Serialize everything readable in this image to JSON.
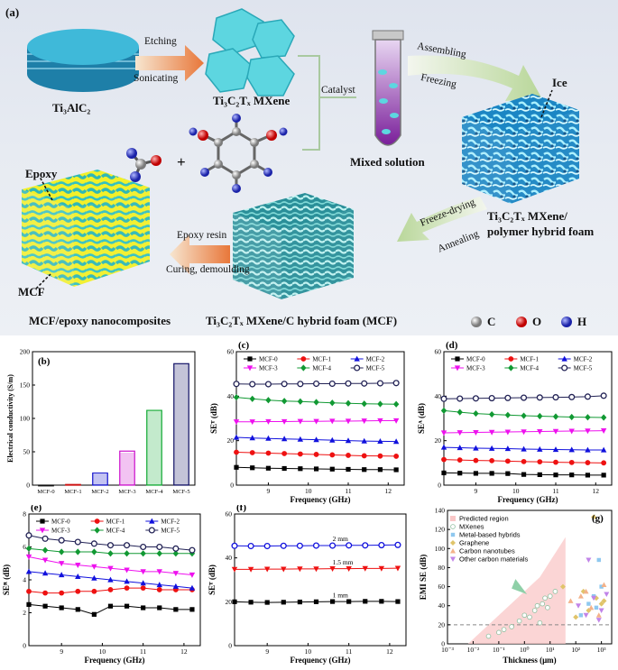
{
  "schematic": {
    "panel_label": "(a)",
    "ti3alc2": "Ti₃AlC₂",
    "etching": "Etching",
    "sonicating": "Sonicating",
    "mxene": "Ti₃C₂Tₓ MXene",
    "catalyst": "Catalyst",
    "assembling": "Assembling",
    "freezing": "Freezing",
    "mixed_solution": "Mixed solution",
    "ice": "Ice",
    "plus": "+",
    "hybrid_line1": "Ti₃C₂Tₓ MXene/",
    "hybrid_line2": "polymer hybrid foam",
    "freeze_drying": "Freeze-drying",
    "annealing": "Annealing",
    "epoxy": "Epoxy",
    "epoxy_resin": "Epoxy resin",
    "curing": "Curing, demoulding",
    "mcf": "MCF",
    "nanocomposites": "MCF/epoxy nanocomposites",
    "carbon_foam": "Ti₃C₂Tₓ MXene/C hybrid foam (MCF)",
    "legend": [
      {
        "symbol": "C",
        "color": "#9a9a9a"
      },
      {
        "symbol": "O",
        "color": "#e01010"
      },
      {
        "symbol": "H",
        "color": "#2233cc"
      }
    ]
  },
  "chart_data": [
    {
      "panel": "(b)",
      "type": "bar",
      "ylabel": "Electrical conductivity  (S/m)",
      "categories": [
        "MCF-0",
        "MCF-1",
        "MCF-2",
        "MCF-3",
        "MCF-4",
        "MCF-5"
      ],
      "values": [
        0,
        1,
        18,
        51,
        112,
        182
      ],
      "colors": [
        "#111111",
        "#cc1111",
        "#1111cc",
        "#cc11cc",
        "#11aa33",
        "#111166"
      ],
      "ylim": [
        0,
        200
      ],
      "yticks": [
        0,
        50,
        100,
        150,
        200
      ]
    },
    {
      "panel": "(c)",
      "type": "line",
      "xlabel": "Frequency (GHz)",
      "ylabel": "SEᵀ (dB)",
      "xlim": [
        8.2,
        12.4
      ],
      "ylim": [
        0,
        60
      ],
      "xticks": [
        9,
        10,
        11,
        12
      ],
      "yticks": [
        0,
        20,
        40,
        60
      ],
      "legend": [
        "MCF-0",
        "MCF-1",
        "MCF-2",
        "MCF-3",
        "MCF-4",
        "MCF-5"
      ],
      "x": [
        8.2,
        8.6,
        9.0,
        9.4,
        9.8,
        10.2,
        10.6,
        11.0,
        11.4,
        11.8,
        12.2
      ],
      "series": [
        {
          "name": "MCF-0",
          "color": "#000000",
          "marker": "s",
          "values": [
            8,
            7.8,
            7.6,
            7.5,
            7.4,
            7.3,
            7.2,
            7.1,
            7.0,
            7.0,
            6.9
          ]
        },
        {
          "name": "MCF-1",
          "color": "#ee1111",
          "marker": "o",
          "values": [
            14.8,
            14.6,
            14.4,
            14.2,
            14.0,
            13.8,
            13.6,
            13.4,
            13.2,
            13.1,
            13.0
          ]
        },
        {
          "name": "MCF-2",
          "color": "#1111dd",
          "marker": "^",
          "values": [
            21.5,
            21.2,
            21.0,
            20.8,
            20.6,
            20.4,
            20.2,
            20.0,
            19.8,
            19.7,
            19.6
          ]
        },
        {
          "name": "MCF-3",
          "color": "#ee11ee",
          "marker": "v",
          "values": [
            28.5,
            28.5,
            28.6,
            28.6,
            28.7,
            28.7,
            28.8,
            28.8,
            28.9,
            29.0,
            29.0
          ]
        },
        {
          "name": "MCF-4",
          "color": "#119933",
          "marker": "d",
          "values": [
            39.5,
            38.8,
            38.2,
            37.8,
            37.6,
            37.3,
            37.0,
            36.8,
            36.6,
            36.5,
            36.4
          ]
        },
        {
          "name": "MCF-5",
          "color": "#222255",
          "marker": "O",
          "values": [
            45.5,
            45.4,
            45.4,
            45.5,
            45.5,
            45.6,
            45.6,
            45.7,
            45.7,
            45.8,
            45.9
          ]
        }
      ]
    },
    {
      "panel": "(d)",
      "type": "line",
      "xlabel": "Frequency (GHz)",
      "ylabel": "SEᴬ (dB)",
      "xlim": [
        8.2,
        12.4
      ],
      "ylim": [
        0,
        60
      ],
      "xticks": [
        9,
        10,
        11,
        12
      ],
      "yticks": [
        0,
        20,
        40,
        60
      ],
      "legend": [
        "MCF-0",
        "MCF-1",
        "MCF-2",
        "MCF-3",
        "MCF-4",
        "MCF-5"
      ],
      "x": [
        8.2,
        8.6,
        9.0,
        9.4,
        9.8,
        10.2,
        10.6,
        11.0,
        11.4,
        11.8,
        12.2
      ],
      "series": [
        {
          "name": "MCF-0",
          "color": "#000000",
          "marker": "s",
          "values": [
            5.5,
            5.4,
            5.3,
            5.3,
            5.2,
            4.8,
            4.7,
            4.6,
            4.6,
            4.5,
            4.5
          ]
        },
        {
          "name": "MCF-1",
          "color": "#ee1111",
          "marker": "o",
          "values": [
            11.5,
            11.3,
            11.1,
            11.0,
            10.8,
            10.6,
            10.5,
            10.3,
            10.2,
            10.1,
            10.0
          ]
        },
        {
          "name": "MCF-2",
          "color": "#1111dd",
          "marker": "^",
          "values": [
            17.0,
            16.8,
            16.6,
            16.5,
            16.4,
            16.2,
            16.1,
            16.0,
            15.9,
            15.8,
            15.8
          ]
        },
        {
          "name": "MCF-3",
          "color": "#ee11ee",
          "marker": "v",
          "values": [
            23.5,
            23.6,
            23.7,
            23.8,
            23.9,
            24.0,
            24.1,
            24.2,
            24.3,
            24.4,
            24.5
          ]
        },
        {
          "name": "MCF-4",
          "color": "#119933",
          "marker": "d",
          "values": [
            33.5,
            32.8,
            32.2,
            31.8,
            31.5,
            31.2,
            31.0,
            30.8,
            30.6,
            30.5,
            30.4
          ]
        },
        {
          "name": "MCF-5",
          "color": "#222255",
          "marker": "O",
          "values": [
            38.8,
            38.9,
            39.0,
            39.1,
            39.2,
            39.3,
            39.4,
            39.5,
            39.6,
            39.8,
            40.2
          ]
        }
      ]
    },
    {
      "panel": "(e)",
      "type": "line",
      "xlabel": "Frequency (GHz)",
      "ylabel": "SEᴿ (dB)",
      "xlim": [
        8.2,
        12.4
      ],
      "ylim": [
        0,
        8
      ],
      "xticks": [
        9,
        10,
        11,
        12
      ],
      "yticks": [
        0,
        2,
        4,
        6,
        8
      ],
      "legend": [
        "MCF-0",
        "MCF-1",
        "MCF-2",
        "MCF-3",
        "MCF-4",
        "MCF-5"
      ],
      "x": [
        8.2,
        8.6,
        9.0,
        9.4,
        9.8,
        10.2,
        10.6,
        11.0,
        11.4,
        11.8,
        12.2
      ],
      "series": [
        {
          "name": "MCF-0",
          "color": "#000000",
          "marker": "s",
          "values": [
            2.5,
            2.4,
            2.3,
            2.2,
            1.9,
            2.4,
            2.4,
            2.3,
            2.3,
            2.2,
            2.2
          ]
        },
        {
          "name": "MCF-1",
          "color": "#ee1111",
          "marker": "o",
          "values": [
            3.3,
            3.2,
            3.2,
            3.3,
            3.3,
            3.4,
            3.5,
            3.5,
            3.4,
            3.4,
            3.4
          ]
        },
        {
          "name": "MCF-2",
          "color": "#1111dd",
          "marker": "^",
          "values": [
            4.5,
            4.4,
            4.3,
            4.2,
            4.1,
            4.0,
            3.9,
            3.8,
            3.7,
            3.6,
            3.5
          ]
        },
        {
          "name": "MCF-3",
          "color": "#ee11ee",
          "marker": "v",
          "values": [
            5.4,
            5.2,
            5.0,
            4.9,
            4.8,
            4.7,
            4.6,
            4.5,
            4.5,
            4.4,
            4.3
          ]
        },
        {
          "name": "MCF-4",
          "color": "#119933",
          "marker": "d",
          "values": [
            5.9,
            5.8,
            5.7,
            5.7,
            5.7,
            5.6,
            5.6,
            5.6,
            5.6,
            5.6,
            5.6
          ]
        },
        {
          "name": "MCF-5",
          "color": "#222255",
          "marker": "O",
          "values": [
            6.7,
            6.5,
            6.4,
            6.3,
            6.2,
            6.1,
            6.1,
            6.0,
            6.0,
            5.9,
            5.8
          ]
        }
      ]
    },
    {
      "panel": "(f)",
      "type": "line",
      "xlabel": "Frequency (GHz)",
      "ylabel": "SEᵀ (dB)",
      "xlim": [
        8.2,
        12.4
      ],
      "ylim": [
        0,
        60
      ],
      "xticks": [
        9,
        10,
        11,
        12
      ],
      "yticks": [
        0,
        20,
        40,
        60
      ],
      "x": [
        8.2,
        8.6,
        9.0,
        9.4,
        9.8,
        10.2,
        10.6,
        11.0,
        11.4,
        11.8,
        12.2
      ],
      "annotations": [
        "2 mm",
        "1.5 mm",
        "1 mm"
      ],
      "series": [
        {
          "name": "2 mm",
          "color": "#1111dd",
          "marker": "O",
          "values": [
            45.5,
            45.4,
            45.4,
            45.5,
            45.5,
            45.6,
            45.6,
            45.7,
            45.7,
            45.8,
            45.9
          ]
        },
        {
          "name": "1.5 mm",
          "color": "#ee1111",
          "marker": "v",
          "values": [
            34.8,
            34.8,
            34.9,
            34.9,
            35.0,
            35.0,
            35.1,
            35.1,
            35.2,
            35.2,
            35.3
          ]
        },
        {
          "name": "1 mm",
          "color": "#000000",
          "marker": "s",
          "values": [
            20.0,
            19.8,
            19.7,
            19.8,
            19.9,
            20.0,
            20.1,
            20.1,
            20.2,
            20.2,
            20.1
          ]
        }
      ]
    },
    {
      "panel": "(g)",
      "type": "scatter",
      "xlabel": "Thickness (μm)",
      "ylabel": "EMI SE (dB)",
      "xlim_log10": [
        -3,
        3.4
      ],
      "ylim": [
        0,
        140
      ],
      "xticks": [
        "10⁻³",
        "10⁻²",
        "10⁻¹",
        "10⁰",
        "10¹",
        "10²",
        "10³"
      ],
      "yticks": [
        0,
        20,
        40,
        60,
        80,
        100,
        120,
        140
      ],
      "legend": [
        "Predicted region",
        "MXenes",
        "Metal-based hybrids",
        "Graphene",
        "Carbon nanotubes",
        "Other carbon materials"
      ],
      "colors": {
        "predicted": "#f9c7c7",
        "mxenes": "#ffffff",
        "metal": "#8fc8ef",
        "graphene": "#e0c46a",
        "cnt": "#f3b28a",
        "other": "#c184e8",
        "threshold": "#888888",
        "arrow": "#8fd0a8"
      },
      "threshold_db": 20,
      "points": [
        {
          "cls": "mxenes",
          "x": [
            -1.4,
            -1.0,
            -0.8,
            -0.5,
            -0.2,
            0.0,
            0.2,
            0.4,
            0.5,
            0.7,
            0.8,
            1.0,
            1.2,
            0.9,
            0.6
          ],
          "y": [
            8,
            12,
            15,
            18,
            24,
            30,
            28,
            35,
            40,
            42,
            48,
            50,
            55,
            38,
            22
          ]
        },
        {
          "cls": "metal",
          "x": [
            2.2,
            2.5,
            2.7,
            2.8,
            3.0,
            2.9
          ],
          "y": [
            30,
            42,
            50,
            38,
            60,
            88
          ]
        },
        {
          "cls": "graphene",
          "x": [
            1.5,
            2.0,
            2.5,
            2.7,
            3.0,
            2.8,
            3.1,
            2.3
          ],
          "y": [
            60,
            28,
            35,
            133,
            42,
            48,
            45,
            55
          ]
        },
        {
          "cls": "cnt",
          "x": [
            1.8,
            2.2,
            2.6,
            2.9,
            3.1,
            2.4
          ],
          "y": [
            45,
            50,
            38,
            30,
            62,
            55
          ]
        },
        {
          "cls": "other",
          "x": [
            2.1,
            2.4,
            2.7,
            3.0,
            3.2,
            2.5,
            2.9
          ],
          "y": [
            40,
            30,
            48,
            35,
            52,
            88,
            25
          ]
        }
      ]
    }
  ]
}
